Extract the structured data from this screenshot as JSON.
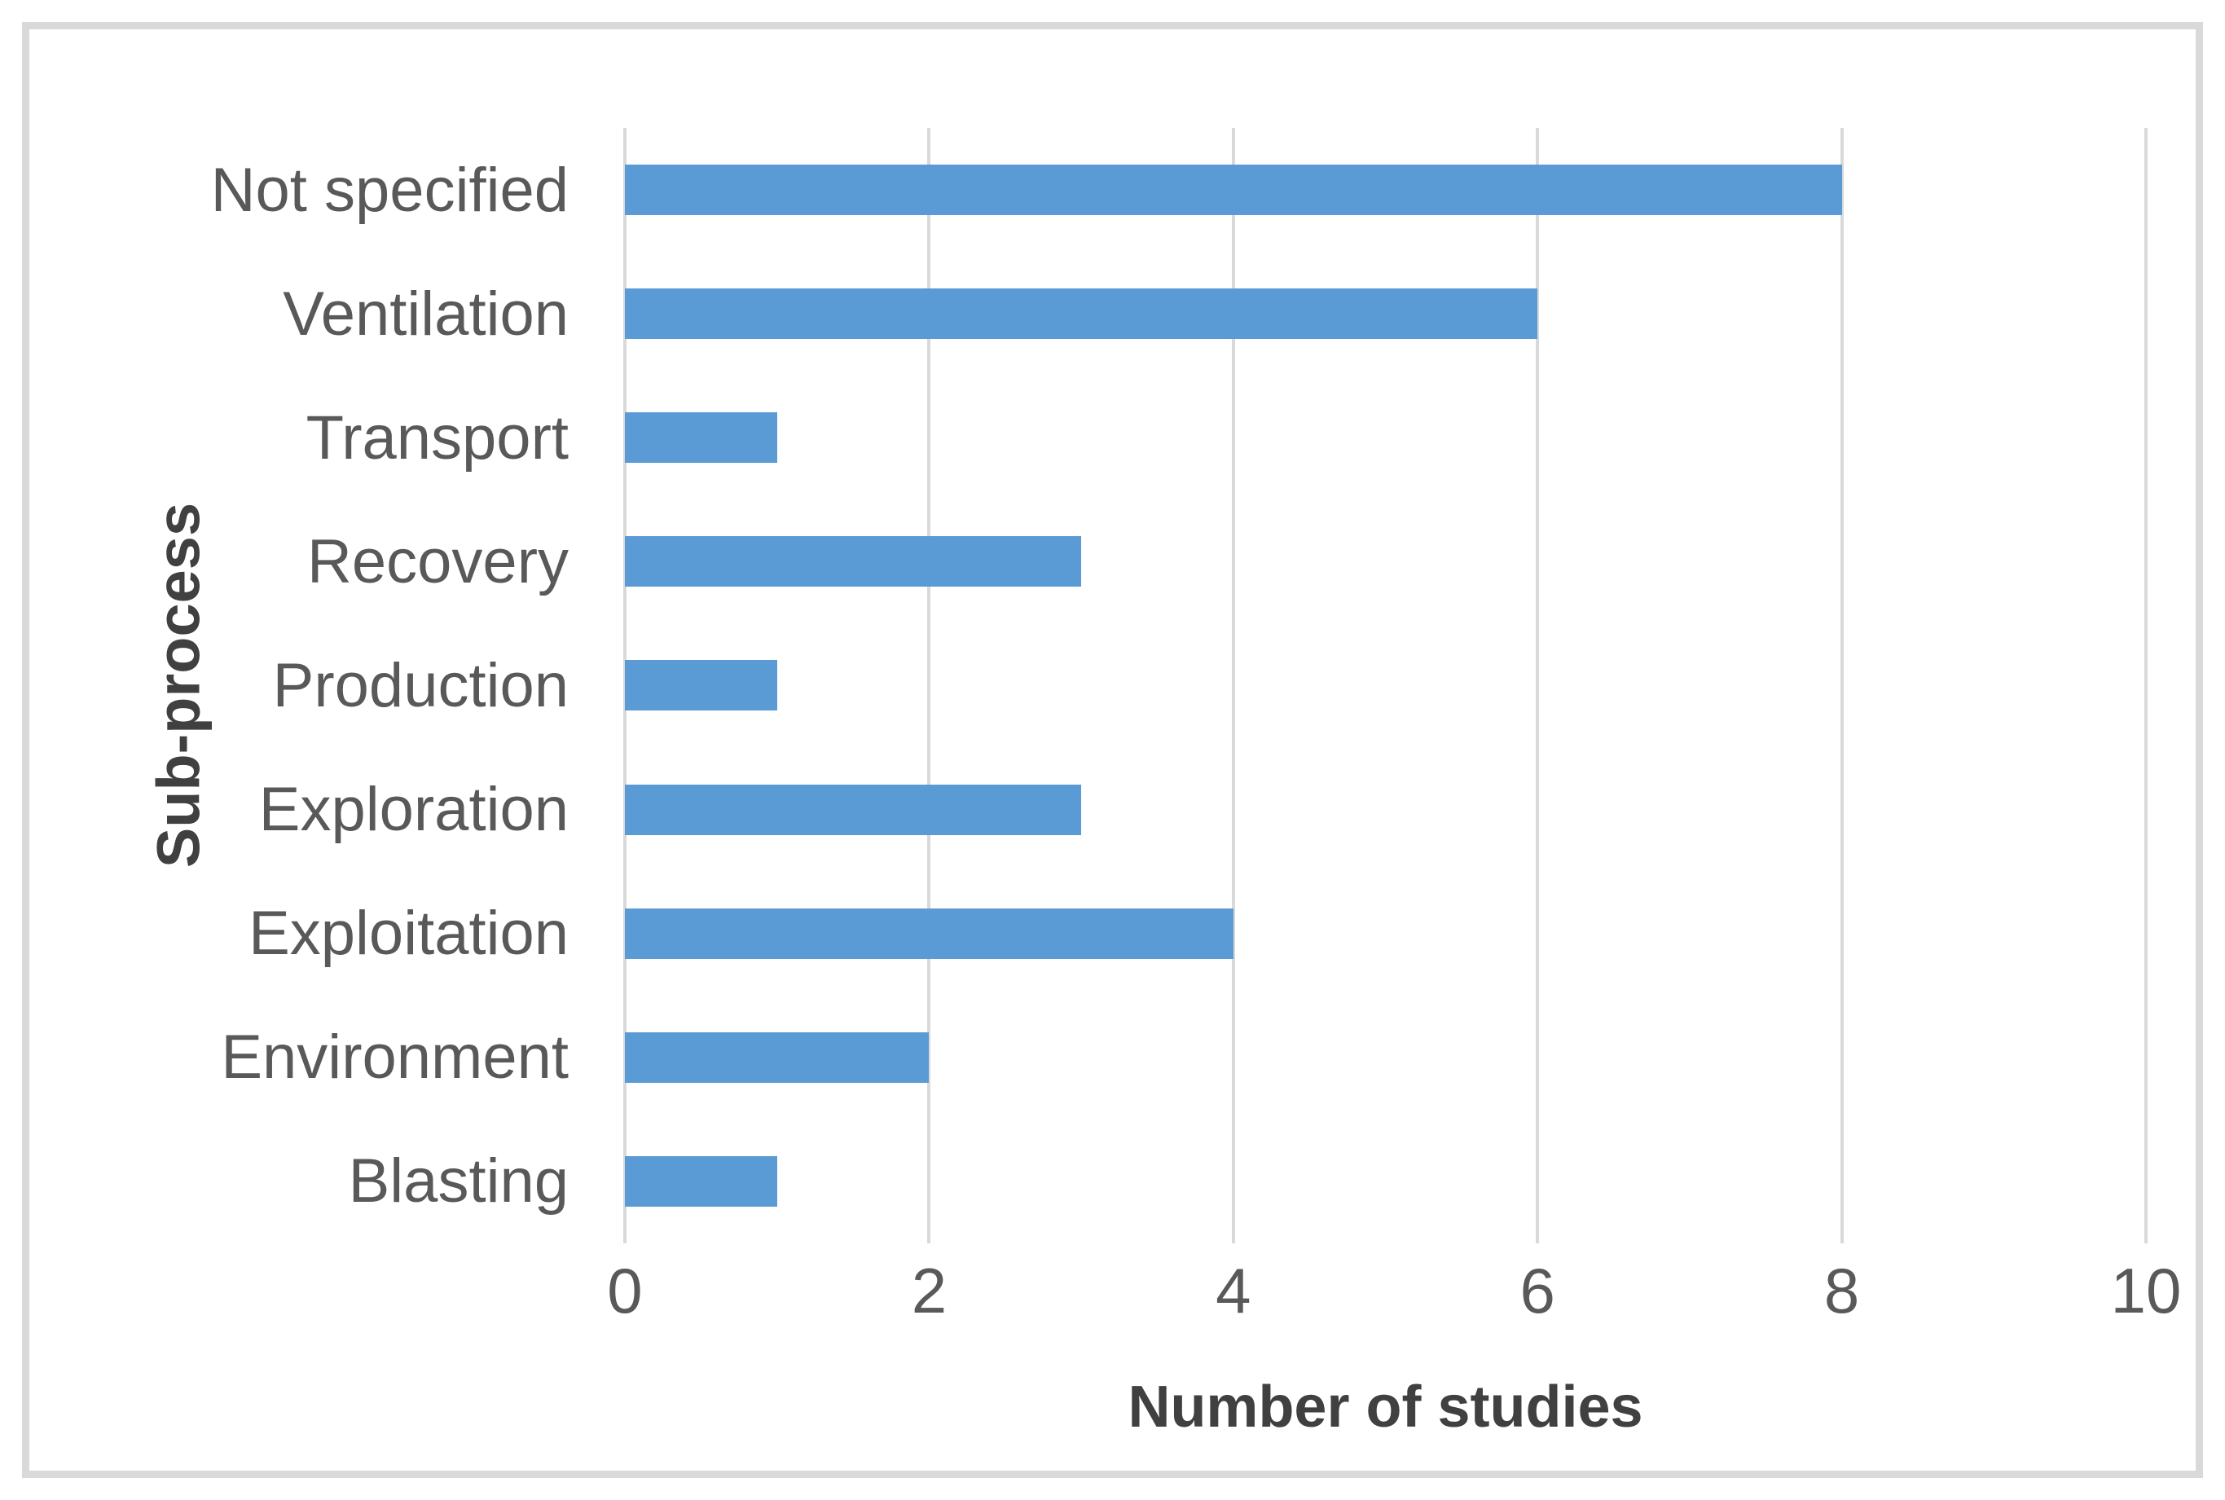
{
  "chart_data": {
    "type": "bar",
    "orientation": "horizontal",
    "categories": [
      "Not specified",
      "Ventilation",
      "Transport",
      "Recovery",
      "Production",
      "Exploration",
      "Exploitation",
      "Environment",
      "Blasting"
    ],
    "values": [
      8,
      6,
      1,
      3,
      1,
      3,
      4,
      2,
      1
    ],
    "title": "",
    "xlabel": "Number of studies",
    "ylabel": "Sub-process",
    "xlim": [
      0,
      10
    ],
    "xticks": [
      0,
      2,
      4,
      6,
      8,
      10
    ],
    "grid": true,
    "legend": "none",
    "bar_color": "#5b9bd5",
    "gridline_color": "#d9d9d9",
    "frame_border_color": "#d9d9d9",
    "tick_text_color": "#595959",
    "axis_title_color": "#404040"
  }
}
